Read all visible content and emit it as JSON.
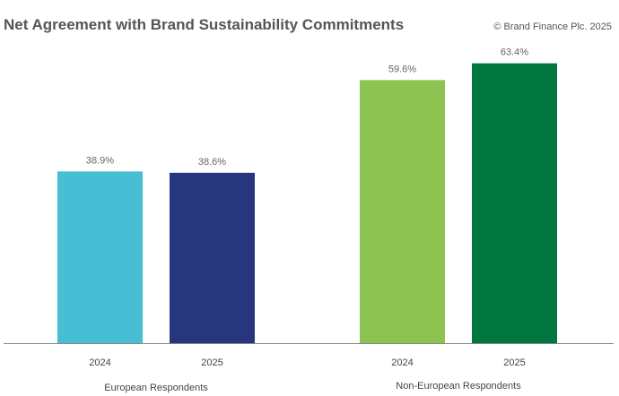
{
  "header": {
    "title": "Net Agreement with Brand Sustainability Commitments",
    "copyright": "© Brand Finance Plc. 2025"
  },
  "chart_data": {
    "type": "bar",
    "title": "Net Agreement with Brand Sustainability Commitments",
    "ylim": [
      0,
      68
    ],
    "grid": false,
    "legend": "none",
    "groups": [
      {
        "name": "European Respondents",
        "bars": [
          {
            "category": "2024",
            "value": 38.9,
            "label": "38.9%",
            "color": "#47BED4"
          },
          {
            "category": "2025",
            "value": 38.6,
            "label": "38.6%",
            "color": "#28367D"
          }
        ]
      },
      {
        "name": "Non-European Respondents",
        "bars": [
          {
            "category": "2024",
            "value": 59.6,
            "label": "59.6%",
            "color": "#8CC351"
          },
          {
            "category": "2025",
            "value": 63.4,
            "label": "63.4%",
            "color": "#00773E"
          }
        ]
      }
    ]
  }
}
